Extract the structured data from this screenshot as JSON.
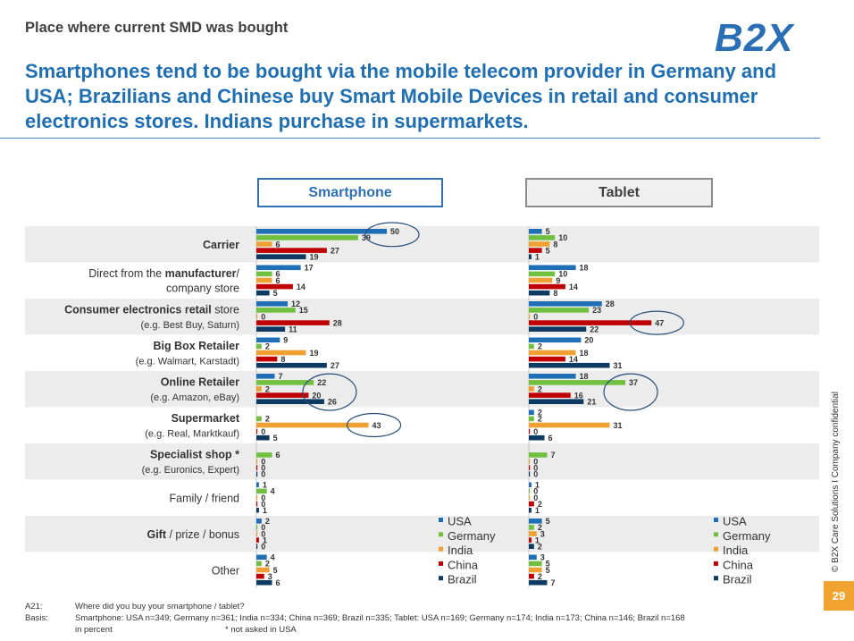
{
  "header": {
    "supertitle": "Place where current SMD was bought",
    "logo": "B2X",
    "headline": "Smartphones tend to be bought via the mobile telecom provider in Germany and USA; Brazilians and Chinese buy Smart Mobile Devices in retail and consumer electronics stores. Indians purchase in supermarkets."
  },
  "footer": {
    "q_label": "A21:",
    "q_text": "Where did you buy your smartphone / tablet?",
    "basis_label": "Basis:",
    "basis_text": "Smartphone: USA n=349; Germany n=361; India n=334; China n=369; Brazil n=335; Tablet: USA n=169; Germany n=174; India n=173; China n=146; Brazil n=168",
    "unit": "in percent",
    "note": "* not asked in USA",
    "side": "© B2X Care Solutions  I  Company confidential",
    "page": "29"
  },
  "chart_data": {
    "type": "bar",
    "orientation": "horizontal",
    "unit": "percent",
    "categories": [
      {
        "lines": [
          [
            [
              "Carrier",
              true
            ]
          ]
        ]
      },
      {
        "lines": [
          [
            [
              "Direct from the ",
              false
            ],
            [
              "manufacturer",
              true
            ],
            [
              "/",
              false
            ]
          ],
          [
            [
              "company store",
              false
            ]
          ]
        ]
      },
      {
        "lines": [
          [
            [
              "Consumer electronics retail",
              true
            ],
            [
              " store",
              false
            ]
          ],
          [
            [
              "(e.g. Best Buy, Saturn)",
              false,
              "small"
            ]
          ]
        ]
      },
      {
        "lines": [
          [
            [
              "Big Box Retailer",
              true
            ]
          ],
          [
            [
              "(e.g. Walmart, Karstadt)",
              false,
              "small"
            ]
          ]
        ]
      },
      {
        "lines": [
          [
            [
              "Online Retailer",
              true
            ]
          ],
          [
            [
              "(e.g. Amazon, eBay)",
              false,
              "small"
            ]
          ]
        ]
      },
      {
        "lines": [
          [
            [
              "Supermarket",
              true
            ]
          ],
          [
            [
              "(e.g. Real, Marktkauf)",
              false,
              "small"
            ]
          ]
        ]
      },
      {
        "lines": [
          [
            [
              "Specialist shop *",
              true
            ]
          ],
          [
            [
              "(e.g. Euronics, Expert)",
              false,
              "small"
            ]
          ]
        ]
      },
      {
        "lines": [
          [
            [
              "Family / friend",
              false
            ]
          ]
        ]
      },
      {
        "lines": [
          [
            [
              "Gift",
              true
            ],
            [
              " / prize / bonus",
              false
            ]
          ]
        ]
      },
      {
        "lines": [
          [
            [
              "Other",
              false
            ]
          ]
        ]
      }
    ],
    "series_names": [
      "USA",
      "Germany",
      "India",
      "China",
      "Brazil"
    ],
    "series_colors": [
      "#1f6fb7",
      "#70c040",
      "#f0a030",
      "#c00000",
      "#0d3a63"
    ],
    "panels": [
      {
        "title": "Smartphone",
        "values": [
          [
            50,
            39,
            6,
            27,
            19
          ],
          [
            17,
            6,
            6,
            14,
            5
          ],
          [
            12,
            15,
            0,
            28,
            11
          ],
          [
            9,
            2,
            19,
            8,
            27
          ],
          [
            7,
            22,
            2,
            20,
            26
          ],
          [
            null,
            2,
            43,
            0,
            5
          ],
          [
            null,
            6,
            0,
            0,
            0
          ],
          [
            1,
            4,
            0,
            0,
            1
          ],
          [
            2,
            0,
            0,
            1,
            0
          ],
          [
            4,
            2,
            5,
            3,
            6
          ]
        ],
        "highlights": [
          [
            0,
            0,
            1
          ],
          [
            4,
            1,
            4
          ],
          [
            5,
            2,
            2
          ]
        ]
      },
      {
        "title": "Tablet",
        "values": [
          [
            5,
            10,
            8,
            5,
            1
          ],
          [
            18,
            10,
            9,
            14,
            8
          ],
          [
            28,
            23,
            0,
            47,
            22
          ],
          [
            20,
            2,
            18,
            14,
            31
          ],
          [
            18,
            37,
            2,
            16,
            21
          ],
          [
            2,
            2,
            31,
            0,
            6
          ],
          [
            null,
            7,
            0,
            0,
            0
          ],
          [
            1,
            0,
            0,
            2,
            1
          ],
          [
            5,
            2,
            3,
            1,
            2
          ],
          [
            3,
            5,
            5,
            2,
            7
          ]
        ],
        "highlights": [
          [
            2,
            3,
            3
          ],
          [
            4,
            1,
            4
          ]
        ]
      }
    ]
  }
}
